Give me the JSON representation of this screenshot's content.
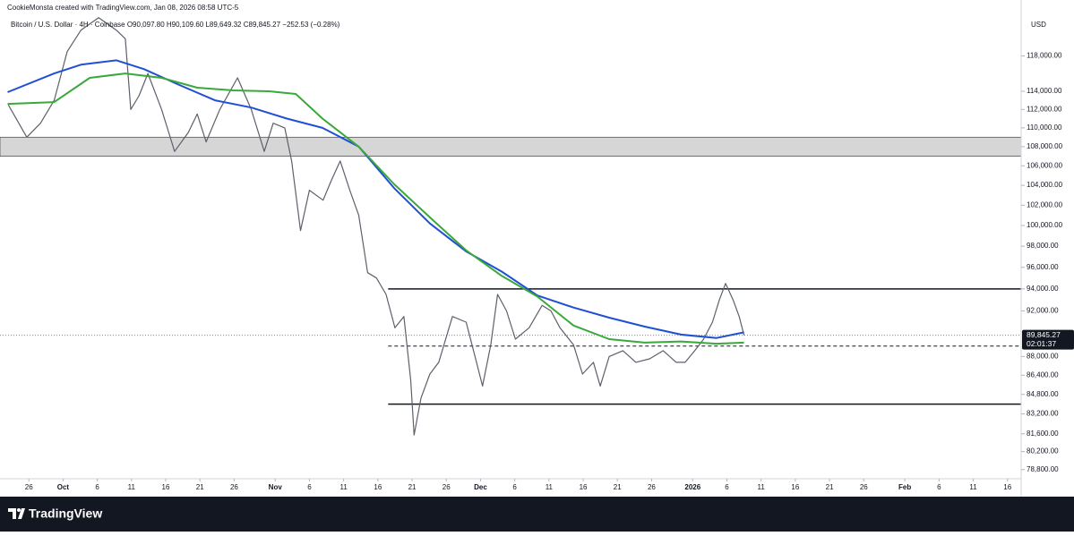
{
  "chart_data": {
    "type": "line",
    "attribution": "CookieMonsta created with TradingView.com, Jan 08, 2026 08:58 UTC-5",
    "title": "Bitcoin / U.S. Dollar · 4H · Coinbase  O90,097.80 H90,109.60 L89,649.32 C89,845.27 −252.53 (−0.28%)",
    "currency": "USD",
    "brand": "TradingView",
    "log_scale": true,
    "ylim": [
      78100,
      123000
    ],
    "xlim": [
      -3.3,
      145
    ],
    "yticks": [
      {
        "value": 118000,
        "label": "118,000.00"
      },
      {
        "value": 114000,
        "label": "114,000.00"
      },
      {
        "value": 112000,
        "label": "112,000.00"
      },
      {
        "value": 110000,
        "label": "110,000.00"
      },
      {
        "value": 108000,
        "label": "108,000.00"
      },
      {
        "value": 106000,
        "label": "106,000.00"
      },
      {
        "value": 104000,
        "label": "104,000.00"
      },
      {
        "value": 102000,
        "label": "102,000.00"
      },
      {
        "value": 100000,
        "label": "100,000.00"
      },
      {
        "value": 98000,
        "label": "98,000.00"
      },
      {
        "value": 96000,
        "label": "96,000.00"
      },
      {
        "value": 94000,
        "label": "94,000.00"
      },
      {
        "value": 92000,
        "label": "92,000.00"
      },
      {
        "value": 88000,
        "label": "88,000.00"
      },
      {
        "value": 86400,
        "label": "86,400.00"
      },
      {
        "value": 84800,
        "label": "84,800.00"
      },
      {
        "value": 83200,
        "label": "83,200.00"
      },
      {
        "value": 81600,
        "label": "81,600.00"
      },
      {
        "value": 80200,
        "label": "80,200.00"
      },
      {
        "value": 78800,
        "label": "78,800.00"
      }
    ],
    "xticks": [
      {
        "value": 0,
        "label": "26"
      },
      {
        "value": 5,
        "label": "Oct"
      },
      {
        "value": 10,
        "label": "6"
      },
      {
        "value": 15,
        "label": "11"
      },
      {
        "value": 20,
        "label": "16"
      },
      {
        "value": 25,
        "label": "21"
      },
      {
        "value": 30,
        "label": "26"
      },
      {
        "value": 36,
        "label": "Nov"
      },
      {
        "value": 41,
        "label": "6"
      },
      {
        "value": 46,
        "label": "11"
      },
      {
        "value": 51,
        "label": "16"
      },
      {
        "value": 56,
        "label": "21"
      },
      {
        "value": 61,
        "label": "26"
      },
      {
        "value": 66,
        "label": "Dec"
      },
      {
        "value": 71,
        "label": "6"
      },
      {
        "value": 76,
        "label": "11"
      },
      {
        "value": 81,
        "label": "16"
      },
      {
        "value": 86,
        "label": "21"
      },
      {
        "value": 91,
        "label": "26"
      },
      {
        "value": 97,
        "label": "2026"
      },
      {
        "value": 102,
        "label": "6"
      },
      {
        "value": 107,
        "label": "11"
      },
      {
        "value": 112,
        "label": "16"
      },
      {
        "value": 117,
        "label": "21"
      },
      {
        "value": 122,
        "label": "26"
      },
      {
        "value": 128,
        "label": "Feb"
      },
      {
        "value": 133,
        "label": "6"
      },
      {
        "value": 138,
        "label": "11"
      },
      {
        "value": 143,
        "label": "16"
      }
    ],
    "series": [
      {
        "color": "#5d606b",
        "x": [
          -3,
          -0.3,
          1.7,
          3.7,
          5.6,
          7.6,
          10.2,
          12.8,
          14.1,
          14.9,
          16.1,
          17.4,
          19.4,
          21.3,
          23.3,
          24.6,
          25.9,
          27.9,
          30.5,
          32.5,
          34.4,
          35.7,
          37.4,
          38.4,
          39.7,
          41.0,
          43.0,
          44.2,
          45.5,
          46.9,
          48.2,
          49.5,
          50.8,
          52.2,
          53.5,
          54.8,
          55.8,
          56.3,
          57.3,
          58.6,
          59.9,
          61.9,
          63.9,
          65.2,
          66.3,
          67.5,
          68.5,
          69.8,
          71.1,
          73.1,
          75.0,
          76.3,
          77.6,
          79.6,
          80.9,
          82.5,
          83.5,
          84.8,
          86.8,
          88.7,
          90.7,
          92.7,
          94.6,
          95.9,
          97.3,
          98.6,
          99.9,
          100.9,
          101.8,
          102.9,
          103.8,
          104.5
        ],
        "values": [
          112500,
          109000,
          110500,
          113000,
          118500,
          121000,
          122500,
          121000,
          120000,
          112000,
          113500,
          116000,
          112000,
          107500,
          109500,
          111500,
          108500,
          112000,
          115500,
          112000,
          107500,
          110500,
          110000,
          106500,
          99500,
          103500,
          102500,
          104500,
          106500,
          103500,
          101000,
          95500,
          95000,
          93500,
          90500,
          91500,
          86000,
          81500,
          84500,
          86500,
          87500,
          91500,
          91000,
          88000,
          85500,
          89000,
          93500,
          92000,
          89500,
          90500,
          92500,
          92000,
          90500,
          89000,
          86500,
          87500,
          85500,
          88000,
          88500,
          87500,
          87800,
          88500,
          87500,
          87500,
          88500,
          89500,
          91000,
          93000,
          94500,
          93000,
          91500,
          89845.27
        ]
      },
      {
        "color": "#1e4fd6",
        "x": [
          -3.1,
          3.7,
          7.6,
          12.8,
          16.8,
          22,
          27.2,
          32.5,
          37.7,
          42.9,
          48.2,
          53.4,
          58.6,
          63.9,
          69.1,
          74.3,
          79.6,
          84.8,
          90,
          95.3,
          100.5,
          104.5
        ],
        "values": [
          113900,
          116000,
          117000,
          117500,
          116500,
          114700,
          113000,
          112200,
          111000,
          110000,
          108000,
          103700,
          100200,
          97500,
          95600,
          93400,
          92300,
          91400,
          90600,
          89900,
          89600,
          90100
        ]
      },
      {
        "color": "#3aa83a",
        "x": [
          -3.1,
          3.7,
          8.9,
          14.1,
          19.4,
          24.6,
          29.8,
          35.1,
          39,
          42.9,
          48.2,
          53.4,
          58.6,
          63.9,
          69.1,
          74.3,
          79.6,
          84.8,
          90,
          95.3,
          100.5,
          104.5
        ],
        "values": [
          112600,
          112800,
          115500,
          116000,
          115500,
          114400,
          114100,
          114000,
          113700,
          111000,
          108000,
          104100,
          100800,
          97600,
          95200,
          93300,
          90700,
          89500,
          89200,
          89300,
          89100,
          89200
        ]
      }
    ],
    "zone": [
      107000,
      109000
    ],
    "hlines": [
      {
        "value": 94000,
        "x0": 52.5,
        "style": "solid"
      },
      {
        "value": 84000,
        "x0": 52.5,
        "style": "solid"
      },
      {
        "value": 88900,
        "x0": 52.5,
        "style": "dashed"
      }
    ],
    "last_price": {
      "value": 89845.27,
      "label": "89,845.27"
    },
    "countdown": "02:01:37"
  }
}
